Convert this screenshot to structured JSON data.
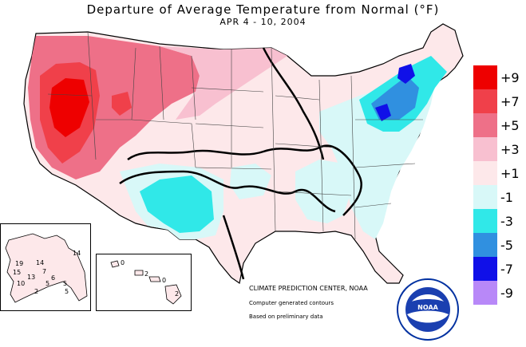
{
  "map": {
    "title": "Departure of Average Temperature from Normal (°F)",
    "date_range": "APR 4 - 10, 2004"
  },
  "legend": {
    "items": [
      {
        "label": "+9",
        "color": "#ee0000"
      },
      {
        "label": "+7",
        "color": "#f0404a"
      },
      {
        "label": "+5",
        "color": "#ee7088"
      },
      {
        "label": "+3",
        "color": "#f8c0d0"
      },
      {
        "label": "+1",
        "color": "#fde8ea"
      },
      {
        "label": "-1",
        "color": "#d8f8f8"
      },
      {
        "label": "-3",
        "color": "#30e8e8"
      },
      {
        "label": "-5",
        "color": "#3090e0"
      },
      {
        "label": "-7",
        "color": "#1010e8"
      },
      {
        "label": "-9",
        "color": "#b888f8"
      }
    ]
  },
  "credits": {
    "center": "CLIMATE PREDICTION CENTER, NOAA",
    "line2": "Computer generated contours",
    "line3": "Based on preliminary data"
  },
  "alaska": {
    "labels": [
      "19",
      "14",
      "14",
      "15",
      "13",
      "7",
      "10",
      "5",
      "6",
      "2",
      "5",
      "5"
    ]
  },
  "hawaii": {
    "labels": [
      "0",
      "2",
      "0",
      "2"
    ]
  },
  "logo": {
    "text": "NOAA"
  }
}
